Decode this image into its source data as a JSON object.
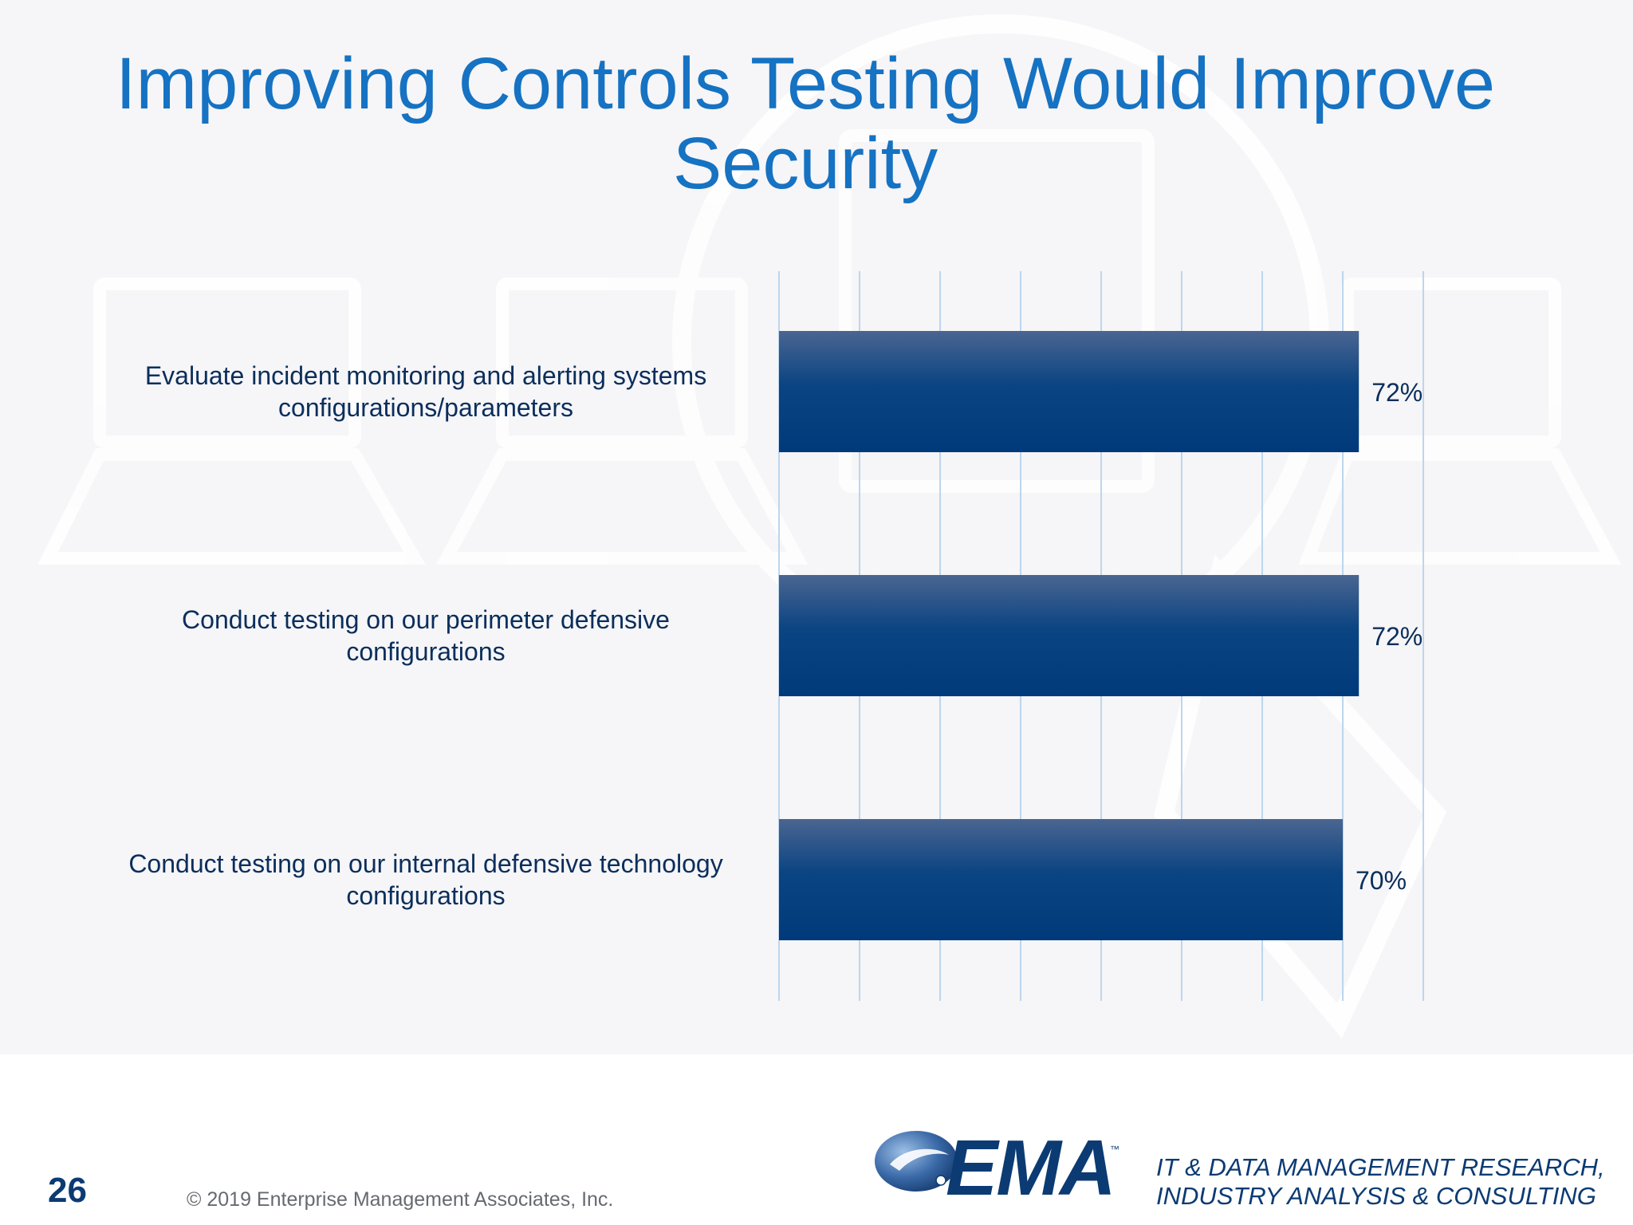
{
  "slide": {
    "title": "Improving Controls Testing Would Improve Security",
    "page_number": "26",
    "copyright": "© 2019 Enterprise Management Associates, Inc.",
    "logo_text": "EMA",
    "logo_tm": "™",
    "tagline_line1": "IT & DATA MANAGEMENT RESEARCH,",
    "tagline_line2": "INDUSTRY ANALYSIS & CONSULTING"
  },
  "colors": {
    "title": "#1672c2",
    "bar_top": "#4a6591",
    "bar_bottom": "#003a7a",
    "gridline": "#bcd6ee",
    "label_text": "#0a2e5c"
  },
  "chart_data": {
    "type": "bar",
    "orientation": "horizontal",
    "categories": [
      "Evaluate incident monitoring and alerting systems configurations/parameters",
      "Conduct testing on our perimeter defensive configurations",
      "Conduct testing on our internal defensive technology configurations"
    ],
    "category_lines": [
      [
        "Evaluate incident monitoring and alerting systems",
        "configurations/parameters"
      ],
      [
        "Conduct testing on our perimeter defensive",
        "configurations"
      ],
      [
        "Conduct testing on our internal defensive technology",
        "configurations"
      ]
    ],
    "values": [
      72,
      72,
      70
    ],
    "data_labels": [
      "72%",
      "72%",
      "70%"
    ],
    "xlim": [
      0,
      80
    ],
    "grid": true,
    "grid_step": 10,
    "title": "",
    "xlabel": "",
    "ylabel": ""
  }
}
